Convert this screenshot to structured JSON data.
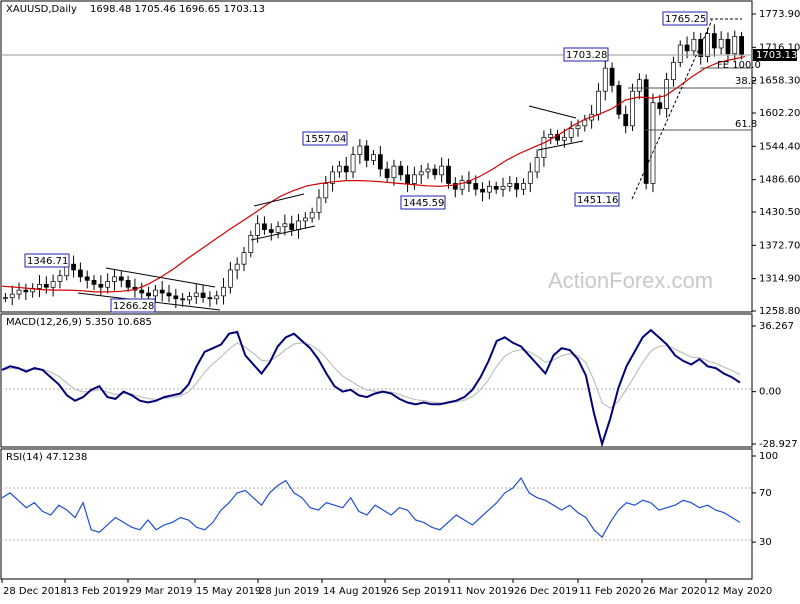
{
  "chart_data": [
    {
      "type": "candlestick",
      "title": "XAUUSD,Daily",
      "ohlc_label": "1698.48 1705.46 1696.65 1703.13",
      "current_price_label": "1703.13",
      "ylim": [
        1258.8,
        1773.9
      ],
      "y_ticks": [
        "1773.90",
        "1716.10",
        "1658.30",
        "1602.20",
        "1544.40",
        "1486.60",
        "1430.50",
        "1372.70",
        "1314.90",
        "1258.80"
      ],
      "x_ticks": [
        "28 Dec 2018",
        "13 Feb 2019",
        "29 Mar 2019",
        "15 May 2019",
        "28 Jun 2019",
        "14 Aug 2019",
        "26 Sep 2019",
        "11 Nov 2019",
        "26 Dec 2019",
        "11 Feb 2020",
        "26 Mar 2020",
        "12 May 2020"
      ],
      "price_annotations": [
        "1346.71",
        "1266.28",
        "1557.04",
        "1445.59",
        "1703.28",
        "1451.16",
        "1765.25"
      ],
      "fib_labels": [
        "FE 100.0",
        "38.2",
        "61.8"
      ],
      "closes": [
        1282,
        1288,
        1295,
        1292,
        1298,
        1305,
        1300,
        1310,
        1320,
        1340,
        1330,
        1318,
        1312,
        1305,
        1300,
        1310,
        1318,
        1312,
        1300,
        1295,
        1290,
        1285,
        1295,
        1290,
        1285,
        1280,
        1278,
        1284,
        1290,
        1282,
        1280,
        1285,
        1300,
        1330,
        1340,
        1360,
        1390,
        1410,
        1400,
        1395,
        1405,
        1410,
        1400,
        1415,
        1420,
        1430,
        1455,
        1480,
        1500,
        1510,
        1500,
        1530,
        1545,
        1520,
        1530,
        1505,
        1490,
        1510,
        1495,
        1480,
        1495,
        1500,
        1505,
        1495,
        1510,
        1480,
        1470,
        1485,
        1480,
        1470,
        1465,
        1475,
        1470,
        1475,
        1480,
        1470,
        1480,
        1500,
        1525,
        1560,
        1565,
        1555,
        1560,
        1575,
        1580,
        1590,
        1600,
        1640,
        1680,
        1650,
        1600,
        1580,
        1640,
        1660,
        1480,
        1620,
        1610,
        1660,
        1690,
        1720,
        1710,
        1730,
        1700,
        1740,
        1715,
        1730,
        1705,
        1735,
        1703
      ],
      "sma_values": [
        1302,
        1300,
        1298,
        1296,
        1295,
        1295,
        1294,
        1292,
        1292,
        1293,
        1296,
        1305,
        1318,
        1333,
        1350,
        1366,
        1382,
        1398,
        1413,
        1428,
        1444,
        1458,
        1468,
        1476,
        1480,
        1483,
        1485,
        1485,
        1484,
        1482,
        1480,
        1478,
        1476,
        1475,
        1477,
        1482,
        1492,
        1505,
        1520,
        1532,
        1542,
        1552,
        1565,
        1580,
        1592,
        1600,
        1610,
        1625,
        1630,
        1628,
        1632,
        1648,
        1665,
        1680,
        1690,
        1695,
        1700
      ],
      "macd_label": "MACD(12,26,9) 5.350 10.685",
      "macd_ylim": [
        -28.927,
        36.267
      ],
      "macd_ticks": [
        "36.267",
        "0.00",
        "-28.927"
      ],
      "macd_values": [
        12,
        14,
        13,
        11,
        13,
        12,
        8,
        4,
        -2,
        -5,
        -3,
        1,
        3,
        -3,
        -4,
        0,
        -2,
        -5,
        -6,
        -5,
        -3,
        -2,
        -1,
        4,
        14,
        22,
        24,
        26,
        32,
        33,
        20,
        15,
        10,
        16,
        25,
        30,
        32,
        28,
        24,
        18,
        10,
        3,
        0,
        1,
        -2,
        -3,
        -1,
        0,
        -1,
        -4,
        -6,
        -7,
        -6,
        -7,
        -7,
        -6,
        -5,
        -3,
        1,
        8,
        17,
        28,
        30,
        27,
        25,
        20,
        15,
        10,
        20,
        24,
        23,
        18,
        9,
        -12,
        -29,
        -15,
        2,
        14,
        22,
        30,
        34,
        30,
        26,
        20,
        17,
        15,
        18,
        14,
        13,
        10,
        8,
        5
      ],
      "rsi_label": "RSI(14) 47.1238",
      "rsi_ylim": [
        0,
        100
      ],
      "rsi_ticks": [
        "100",
        "70",
        "30",
        "0"
      ],
      "rsi_values": [
        66,
        70,
        64,
        58,
        62,
        55,
        52,
        60,
        56,
        50,
        62,
        40,
        38,
        44,
        50,
        46,
        42,
        40,
        48,
        40,
        44,
        46,
        50,
        48,
        42,
        40,
        46,
        56,
        62,
        70,
        72,
        66,
        60,
        70,
        76,
        80,
        70,
        66,
        58,
        56,
        62,
        60,
        58,
        66,
        55,
        52,
        60,
        56,
        52,
        58,
        56,
        48,
        46,
        42,
        40,
        46,
        52,
        48,
        44,
        50,
        56,
        62,
        70,
        74,
        82,
        70,
        66,
        64,
        60,
        56,
        60,
        54,
        50,
        40,
        34,
        46,
        56,
        62,
        60,
        64,
        62,
        56,
        58,
        60,
        64,
        62,
        58,
        60,
        56,
        54,
        50,
        46
      ],
      "colors": {
        "candles": "#000000",
        "sma": "#d40000",
        "macd": "#00007a",
        "macd_signal": "#c0c0c0",
        "rsi": "#1f4fd6",
        "current_price_box": "#000000",
        "annotation_border": "#2020b0"
      },
      "watermark": "ActionForex.com"
    }
  ]
}
